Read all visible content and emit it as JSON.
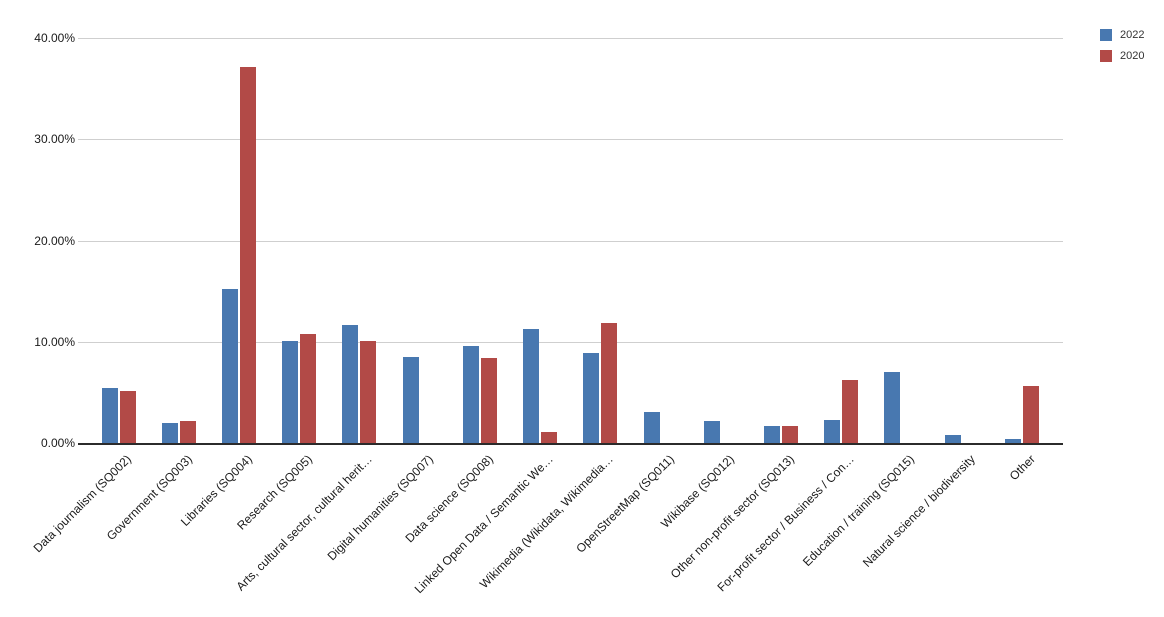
{
  "legend": {
    "items": [
      {
        "label": "2022",
        "color": "#4878B0"
      },
      {
        "label": "2020",
        "color": "#B24A47"
      }
    ]
  },
  "chart_data": {
    "type": "bar",
    "title": "",
    "xlabel": "",
    "ylabel": "",
    "ylim": [
      0,
      40
    ],
    "yticks": [
      "0.00%",
      "10.00%",
      "20.00%",
      "30.00%",
      "40.00%"
    ],
    "grid": true,
    "legend_position": "top-right",
    "categories": [
      "Data journalism (SQ002)",
      "Government (SQ003)",
      "Libraries (SQ004)",
      "Research (SQ005)",
      "Arts, cultural sector, cultural herit…",
      "Digital humanities (SQ007)",
      "Data science (SQ008)",
      "Linked Open Data / Semantic We…",
      "Wikimedia (Wikidata, Wikimedia…",
      "OpenStreetMap (SQ011)",
      "Wikibase (SQ012)",
      "Other non-profit sector (SQ013)",
      "For-profit sector / Business / Con…",
      "Education / training (SQ015)",
      "Natural science / biodiversity",
      "Other"
    ],
    "series": [
      {
        "name": "2022",
        "color": "#4878B0",
        "values": [
          5.4,
          2.0,
          15.2,
          10.1,
          11.7,
          8.5,
          9.6,
          11.3,
          8.9,
          3.1,
          2.2,
          1.7,
          2.3,
          7.0,
          0.8,
          0.4
        ]
      },
      {
        "name": "2020",
        "color": "#B24A47",
        "values": [
          5.1,
          2.2,
          37.1,
          10.8,
          10.1,
          0,
          8.4,
          1.1,
          11.9,
          0,
          0,
          1.7,
          6.2,
          0,
          0,
          5.6
        ]
      }
    ]
  }
}
